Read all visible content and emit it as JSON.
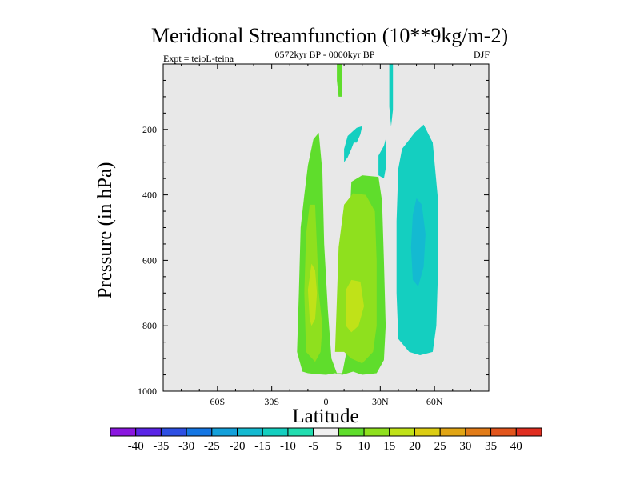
{
  "chart_data": {
    "type": "contour",
    "title": "Meridional Streamfunction (10**9kg/m-2)",
    "experiment": "Expt = teioL-teina",
    "period": "0572kyr BP - 0000kyr BP",
    "season": "DJF",
    "xlabel": "Latitude",
    "ylabel": "Pressure (in hPa)",
    "xlim": [
      -90,
      90
    ],
    "ylim": [
      0,
      1000
    ],
    "x_ticks": [
      {
        "value": -60,
        "label": "60S"
      },
      {
        "value": -30,
        "label": "30S"
      },
      {
        "value": 0,
        "label": "0"
      },
      {
        "value": 30,
        "label": "30N"
      },
      {
        "value": 60,
        "label": "60N"
      }
    ],
    "y_ticks": [
      {
        "value": 200,
        "label": "200"
      },
      {
        "value": 400,
        "label": "400"
      },
      {
        "value": 600,
        "label": "600"
      },
      {
        "value": 800,
        "label": "800"
      },
      {
        "value": 1000,
        "label": "1000"
      }
    ],
    "background_color": "#e8e8e8",
    "colorbar": {
      "labels": [
        "-40",
        "-35",
        "-30",
        "-25",
        "-20",
        "-15",
        "-10",
        "-5",
        "5",
        "10",
        "15",
        "20",
        "25",
        "30",
        "35",
        "40"
      ],
      "colors": [
        "#8a16df",
        "#5a24e6",
        "#2d4fe3",
        "#1476e3",
        "#13a0da",
        "#14bad1",
        "#14cfc0",
        "#22ddb0",
        "#f0f0f0",
        "#5fdd2c",
        "#8fe01e",
        "#c0e218",
        "#dccd12",
        "#e1a514",
        "#e27c18",
        "#e2551c",
        "#e02e20"
      ]
    },
    "regions": [
      {
        "name": "sh-cell-outer-5to10",
        "value": 7.5,
        "color": "#5fdd2c",
        "polygon": [
          [
            -13,
            940
          ],
          [
            -16,
            880
          ],
          [
            -15,
            700
          ],
          [
            -14,
            500
          ],
          [
            -12,
            400
          ],
          [
            -10,
            310
          ],
          [
            -7,
            230
          ],
          [
            -4,
            210
          ],
          [
            -2,
            330
          ],
          [
            -1,
            550
          ],
          [
            1,
            750
          ],
          [
            3,
            900
          ],
          [
            6,
            945
          ],
          [
            9,
            945
          ],
          [
            12,
            860
          ],
          [
            13,
            700
          ],
          [
            13,
            480
          ],
          [
            14,
            360
          ],
          [
            20,
            340
          ],
          [
            29,
            345
          ],
          [
            31,
            420
          ],
          [
            32,
            600
          ],
          [
            33,
            800
          ],
          [
            32,
            905
          ],
          [
            28,
            945
          ],
          [
            20,
            950
          ],
          [
            15,
            940
          ],
          [
            9,
            950
          ],
          [
            5,
            945
          ],
          [
            0,
            950
          ],
          [
            -5,
            948
          ],
          [
            -10,
            945
          ]
        ]
      },
      {
        "name": "sh-cell-10to15",
        "value": 12.5,
        "color": "#8fe01e",
        "polygon": [
          [
            -11,
            880
          ],
          [
            -12,
            700
          ],
          [
            -11,
            520
          ],
          [
            -9,
            430
          ],
          [
            -6,
            430
          ],
          [
            -5,
            560
          ],
          [
            -4,
            700
          ],
          [
            -2,
            800
          ],
          [
            -3,
            880
          ],
          [
            -6,
            910
          ]
        ]
      },
      {
        "name": "eq-cell-10to15",
        "value": 12.5,
        "color": "#8fe01e",
        "polygon": [
          [
            5,
            880
          ],
          [
            6,
            720
          ],
          [
            7,
            560
          ],
          [
            10,
            430
          ],
          [
            15,
            395
          ],
          [
            22,
            400
          ],
          [
            27,
            450
          ],
          [
            28,
            600
          ],
          [
            28,
            800
          ],
          [
            26,
            880
          ],
          [
            20,
            915
          ],
          [
            14,
            900
          ],
          [
            10,
            880
          ]
        ]
      },
      {
        "name": "sh-cell-15to20",
        "value": 17.5,
        "color": "#c0e218",
        "polygon": [
          [
            -9,
            780
          ],
          [
            -10,
            690
          ],
          [
            -8,
            610
          ],
          [
            -6,
            630
          ],
          [
            -5,
            700
          ],
          [
            -6,
            780
          ],
          [
            -8,
            800
          ]
        ]
      },
      {
        "name": "eq-cell-15to20",
        "value": 17.5,
        "color": "#c0e218",
        "polygon": [
          [
            11,
            800
          ],
          [
            11,
            690
          ],
          [
            14,
            660
          ],
          [
            19,
            665
          ],
          [
            21,
            740
          ],
          [
            18,
            800
          ],
          [
            14,
            820
          ]
        ]
      },
      {
        "name": "nh-cell-minus5to-10",
        "value": -7.5,
        "color": "#14cfc0",
        "polygon": [
          [
            46,
            880
          ],
          [
            40,
            840
          ],
          [
            39,
            700
          ],
          [
            39,
            480
          ],
          [
            40,
            320
          ],
          [
            42,
            260
          ],
          [
            49,
            210
          ],
          [
            54,
            185
          ],
          [
            59,
            240
          ],
          [
            62,
            420
          ],
          [
            62,
            620
          ],
          [
            61,
            800
          ],
          [
            59,
            880
          ],
          [
            52,
            890
          ]
        ]
      },
      {
        "name": "nh-cell-minus10to-15",
        "value": -12.5,
        "color": "#14bad1",
        "polygon": [
          [
            48,
            660
          ],
          [
            47,
            560
          ],
          [
            48,
            460
          ],
          [
            50,
            410
          ],
          [
            53,
            430
          ],
          [
            55,
            520
          ],
          [
            54,
            620
          ],
          [
            51,
            680
          ]
        ]
      },
      {
        "name": "upper-cell-a",
        "value": -7.5,
        "color": "#14cfc0",
        "polygon": [
          [
            10,
            300
          ],
          [
            10,
            260
          ],
          [
            12,
            220
          ],
          [
            15,
            205
          ],
          [
            16,
            230
          ],
          [
            14,
            260
          ],
          [
            12,
            285
          ]
        ]
      },
      {
        "name": "upper-cell-b",
        "value": -7.5,
        "color": "#14cfc0",
        "polygon": [
          [
            15,
            240
          ],
          [
            15,
            205
          ],
          [
            17,
            195
          ],
          [
            20,
            190
          ],
          [
            19,
            215
          ],
          [
            17,
            240
          ]
        ]
      },
      {
        "name": "upper-streak-green",
        "value": 7.5,
        "color": "#5fdd2c",
        "polygon": [
          [
            6,
            0
          ],
          [
            9,
            0
          ],
          [
            9,
            100
          ],
          [
            7,
            100
          ],
          [
            6,
            50
          ]
        ]
      },
      {
        "name": "upper-streak-cyan",
        "value": -7.5,
        "color": "#14cfc0",
        "polygon": [
          [
            35,
            0
          ],
          [
            37,
            0
          ],
          [
            37,
            140
          ],
          [
            36,
            190
          ],
          [
            35,
            130
          ]
        ]
      },
      {
        "name": "upper-streak-cyan-2",
        "value": -7.5,
        "color": "#14cfc0",
        "polygon": [
          [
            29,
            280
          ],
          [
            32,
            250
          ],
          [
            33,
            230
          ],
          [
            33,
            320
          ],
          [
            32,
            350
          ],
          [
            29,
            340
          ]
        ]
      }
    ]
  }
}
